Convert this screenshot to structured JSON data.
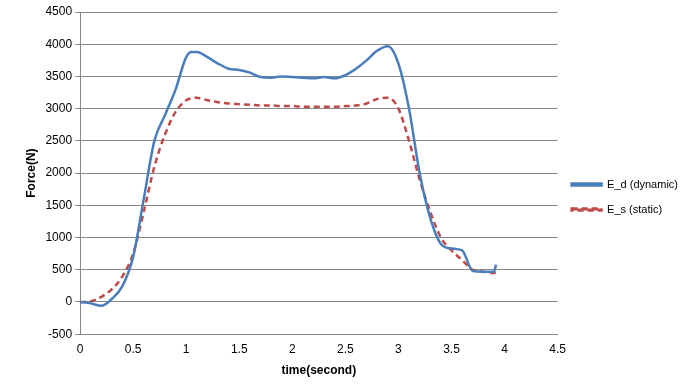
{
  "chart_data": {
    "type": "line",
    "x_label": "time(second)",
    "y_label": "Force(N)",
    "x": [
      0,
      0.1,
      0.2,
      0.3,
      0.4,
      0.5,
      0.6,
      0.7,
      0.8,
      0.9,
      1.0,
      1.05,
      1.1,
      1.2,
      1.3,
      1.4,
      1.5,
      1.6,
      1.7,
      1.8,
      1.9,
      2.0,
      2.1,
      2.2,
      2.3,
      2.4,
      2.5,
      2.6,
      2.7,
      2.8,
      2.9,
      3.0,
      3.1,
      3.2,
      3.3,
      3.4,
      3.5,
      3.6,
      3.7,
      3.8,
      3.9,
      3.92
    ],
    "series": [
      {
        "name": "E_d (dynamic)",
        "color": "#4a7ebb",
        "line_style": "solid",
        "marker": "none",
        "values": [
          0,
          -20,
          -60,
          50,
          250,
          700,
          1600,
          2500,
          2900,
          3300,
          3800,
          3880,
          3880,
          3800,
          3700,
          3620,
          3600,
          3560,
          3490,
          3480,
          3500,
          3490,
          3480,
          3470,
          3490,
          3470,
          3520,
          3620,
          3750,
          3900,
          3970,
          3700,
          3000,
          2000,
          1300,
          900,
          830,
          800,
          480,
          470,
          470,
          580
        ]
      },
      {
        "name": "E_s (static)",
        "color": "#be4b48",
        "line_style": "dashed",
        "marker": "none",
        "values": [
          0,
          10,
          80,
          200,
          400,
          750,
          1400,
          2100,
          2600,
          2950,
          3130,
          3160,
          3170,
          3130,
          3100,
          3080,
          3070,
          3060,
          3050,
          3050,
          3040,
          3040,
          3030,
          3030,
          3030,
          3030,
          3040,
          3050,
          3080,
          3150,
          3170,
          3000,
          2500,
          1900,
          1400,
          1000,
          800,
          650,
          500,
          470,
          450,
          460
        ]
      }
    ],
    "xlim": [
      0,
      4.5
    ],
    "xticks": [
      0,
      0.5,
      1,
      1.5,
      2,
      2.5,
      3,
      3.5,
      4,
      4.5
    ],
    "ylim": [
      -500,
      4500
    ],
    "yticks": [
      -500,
      0,
      500,
      1000,
      1500,
      2000,
      2500,
      3000,
      3500,
      4000,
      4500
    ],
    "grid": true,
    "legend": "right"
  }
}
